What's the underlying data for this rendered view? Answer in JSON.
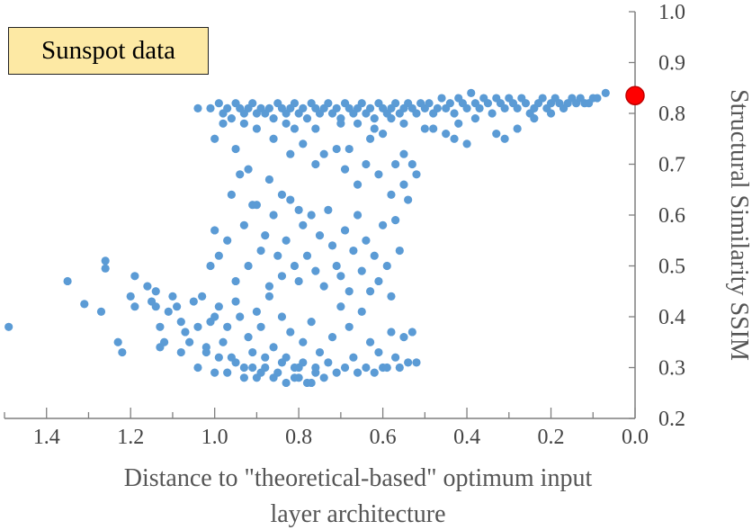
{
  "colors": {
    "points": "#5b9bd5",
    "optimum": "#ff0000",
    "optimum_stroke": "#c00000",
    "annotation_bg": "#fde9a4",
    "axis": "#7f7f7f",
    "text": "#444444"
  },
  "chart_data": {
    "type": "scatter",
    "annotation": "Sunspot data",
    "xlabel_lines": [
      "Distance to \"theoretical-based\" optimum input",
      "layer architecture"
    ],
    "ylabel": "Structural Similarity SSIM",
    "xlim": [
      0,
      1.5
    ],
    "x_reversed": true,
    "ylim": [
      0.2,
      1.0
    ],
    "y_axis_position": "right",
    "grid": false,
    "x_ticks": [
      "1.4",
      "1.2",
      "1.0",
      "0.8",
      "0.6",
      "0.4",
      "0.2",
      "0.0"
    ],
    "x_tick_values": [
      1.4,
      1.2,
      1.0,
      0.8,
      0.6,
      0.4,
      0.2,
      0.0
    ],
    "y_ticks": [
      "1.0",
      "0.9",
      "0.8",
      "0.7",
      "0.6",
      "0.5",
      "0.4",
      "0.3",
      "0.2"
    ],
    "y_tick_values": [
      1.0,
      0.9,
      0.8,
      0.7,
      0.6,
      0.5,
      0.4,
      0.3,
      0.2
    ],
    "optimum_point": {
      "x": 0.0,
      "y": 0.835
    },
    "points": [
      [
        1.49,
        0.38
      ],
      [
        1.35,
        0.47
      ],
      [
        1.31,
        0.425
      ],
      [
        1.27,
        0.41
      ],
      [
        1.26,
        0.51
      ],
      [
        1.26,
        0.495
      ],
      [
        1.23,
        0.35
      ],
      [
        1.22,
        0.33
      ],
      [
        1.2,
        0.44
      ],
      [
        1.19,
        0.42
      ],
      [
        1.19,
        0.48
      ],
      [
        1.16,
        0.46
      ],
      [
        1.15,
        0.43
      ],
      [
        1.14,
        0.45
      ],
      [
        1.14,
        0.42
      ],
      [
        1.13,
        0.38
      ],
      [
        1.13,
        0.34
      ],
      [
        1.12,
        0.35
      ],
      [
        1.11,
        0.41
      ],
      [
        1.1,
        0.44
      ],
      [
        1.09,
        0.42
      ],
      [
        1.08,
        0.39
      ],
      [
        1.08,
        0.33
      ],
      [
        1.07,
        0.37
      ],
      [
        1.06,
        0.35
      ],
      [
        1.05,
        0.43
      ],
      [
        1.04,
        0.3
      ],
      [
        1.04,
        0.38
      ],
      [
        1.03,
        0.44
      ],
      [
        1.02,
        0.34
      ],
      [
        1.01,
        0.39
      ],
      [
        1.0,
        0.29
      ],
      [
        1.0,
        0.4
      ],
      [
        0.99,
        0.42
      ],
      [
        0.98,
        0.35
      ],
      [
        0.97,
        0.38
      ],
      [
        0.96,
        0.32
      ],
      [
        0.95,
        0.43
      ],
      [
        0.94,
        0.4
      ],
      [
        0.93,
        0.3
      ],
      [
        0.92,
        0.36
      ],
      [
        0.91,
        0.33
      ],
      [
        0.9,
        0.41
      ],
      [
        0.9,
        0.28
      ],
      [
        0.89,
        0.38
      ],
      [
        0.88,
        0.3
      ],
      [
        0.87,
        0.44
      ],
      [
        0.86,
        0.34
      ],
      [
        0.85,
        0.29
      ],
      [
        0.84,
        0.4
      ],
      [
        0.83,
        0.32
      ],
      [
        0.82,
        0.37
      ],
      [
        0.81,
        0.28
      ],
      [
        0.8,
        0.3
      ],
      [
        0.79,
        0.35
      ],
      [
        0.78,
        0.27
      ],
      [
        0.77,
        0.39
      ],
      [
        0.76,
        0.29
      ],
      [
        0.75,
        0.33
      ],
      [
        0.74,
        0.28
      ],
      [
        0.73,
        0.31
      ],
      [
        0.72,
        0.36
      ],
      [
        0.71,
        0.29
      ],
      [
        0.7,
        0.42
      ],
      [
        0.69,
        0.3
      ],
      [
        0.68,
        0.38
      ],
      [
        0.67,
        0.32
      ],
      [
        0.66,
        0.29
      ],
      [
        0.65,
        0.41
      ],
      [
        0.64,
        0.3
      ],
      [
        0.63,
        0.35
      ],
      [
        0.62,
        0.29
      ],
      [
        0.61,
        0.33
      ],
      [
        0.6,
        0.3
      ],
      [
        0.59,
        0.3
      ],
      [
        0.58,
        0.37
      ],
      [
        0.57,
        0.32
      ],
      [
        0.56,
        0.3
      ],
      [
        0.55,
        0.36
      ],
      [
        0.54,
        0.31
      ],
      [
        0.53,
        0.37
      ],
      [
        0.52,
        0.31
      ],
      [
        0.97,
        0.29
      ],
      [
        0.93,
        0.28
      ],
      [
        0.89,
        0.29
      ],
      [
        0.86,
        0.28
      ],
      [
        0.83,
        0.27
      ],
      [
        0.8,
        0.28
      ],
      [
        0.77,
        0.27
      ],
      [
        0.84,
        0.31
      ],
      [
        0.81,
        0.3
      ],
      [
        0.79,
        0.31
      ],
      [
        0.76,
        0.3
      ],
      [
        0.91,
        0.3
      ],
      [
        0.95,
        0.31
      ],
      [
        0.99,
        0.32
      ],
      [
        1.02,
        0.33
      ],
      [
        0.88,
        0.32
      ],
      [
        1.01,
        0.5
      ],
      [
        0.99,
        0.52
      ],
      [
        0.97,
        0.55
      ],
      [
        0.95,
        0.47
      ],
      [
        0.93,
        0.58
      ],
      [
        0.92,
        0.5
      ],
      [
        0.9,
        0.62
      ],
      [
        0.89,
        0.53
      ],
      [
        0.88,
        0.56
      ],
      [
        0.87,
        0.46
      ],
      [
        0.86,
        0.6
      ],
      [
        0.85,
        0.52
      ],
      [
        0.84,
        0.48
      ],
      [
        0.83,
        0.55
      ],
      [
        0.82,
        0.63
      ],
      [
        0.81,
        0.5
      ],
      [
        0.8,
        0.47
      ],
      [
        0.79,
        0.58
      ],
      [
        0.78,
        0.52
      ],
      [
        0.77,
        0.6
      ],
      [
        0.76,
        0.49
      ],
      [
        0.75,
        0.56
      ],
      [
        0.74,
        0.46
      ],
      [
        0.73,
        0.61
      ],
      [
        0.72,
        0.54
      ],
      [
        0.71,
        0.5
      ],
      [
        0.7,
        0.48
      ],
      [
        0.69,
        0.57
      ],
      [
        0.68,
        0.45
      ],
      [
        0.67,
        0.53
      ],
      [
        0.66,
        0.6
      ],
      [
        0.65,
        0.49
      ],
      [
        0.64,
        0.55
      ],
      [
        0.63,
        0.45
      ],
      [
        0.62,
        0.52
      ],
      [
        0.61,
        0.47
      ],
      [
        0.6,
        0.58
      ],
      [
        0.59,
        0.5
      ],
      [
        0.58,
        0.44
      ],
      [
        0.57,
        0.59
      ],
      [
        0.56,
        0.53
      ],
      [
        1.0,
        0.57
      ],
      [
        0.96,
        0.64
      ],
      [
        0.94,
        0.68
      ],
      [
        0.91,
        0.62
      ],
      [
        0.87,
        0.67
      ],
      [
        0.84,
        0.64
      ],
      [
        0.8,
        0.61
      ],
      [
        0.76,
        0.7
      ],
      [
        0.74,
        0.72
      ],
      [
        0.69,
        0.69
      ],
      [
        0.66,
        0.66
      ],
      [
        0.64,
        0.7
      ],
      [
        0.61,
        0.68
      ],
      [
        0.58,
        0.64
      ],
      [
        0.55,
        0.66
      ],
      [
        0.54,
        0.63
      ],
      [
        0.57,
        0.7
      ],
      [
        0.6,
        0.76
      ],
      [
        0.63,
        0.75
      ],
      [
        0.71,
        0.73
      ],
      [
        0.79,
        0.74
      ],
      [
        0.86,
        0.75
      ],
      [
        0.95,
        0.73
      ],
      [
        1.0,
        0.75
      ],
      [
        0.92,
        0.69
      ],
      [
        0.82,
        0.72
      ],
      [
        0.68,
        0.73
      ],
      [
        0.52,
        0.68
      ],
      [
        0.55,
        0.72
      ],
      [
        0.53,
        0.7
      ],
      [
        1.04,
        0.81
      ],
      [
        1.01,
        0.81
      ],
      [
        0.99,
        0.82
      ],
      [
        0.98,
        0.8
      ],
      [
        0.97,
        0.81
      ],
      [
        0.96,
        0.79
      ],
      [
        0.95,
        0.82
      ],
      [
        0.94,
        0.81
      ],
      [
        0.93,
        0.8
      ],
      [
        0.92,
        0.81
      ],
      [
        0.91,
        0.82
      ],
      [
        0.9,
        0.8
      ],
      [
        0.89,
        0.81
      ],
      [
        0.88,
        0.8
      ],
      [
        0.87,
        0.81
      ],
      [
        0.86,
        0.79
      ],
      [
        0.85,
        0.82
      ],
      [
        0.84,
        0.81
      ],
      [
        0.83,
        0.8
      ],
      [
        0.82,
        0.81
      ],
      [
        0.81,
        0.82
      ],
      [
        0.8,
        0.8
      ],
      [
        0.79,
        0.81
      ],
      [
        0.78,
        0.79
      ],
      [
        0.77,
        0.82
      ],
      [
        0.76,
        0.81
      ],
      [
        0.75,
        0.8
      ],
      [
        0.74,
        0.81
      ],
      [
        0.73,
        0.82
      ],
      [
        0.72,
        0.8
      ],
      [
        0.71,
        0.81
      ],
      [
        0.7,
        0.79
      ],
      [
        0.69,
        0.82
      ],
      [
        0.68,
        0.81
      ],
      [
        0.67,
        0.8
      ],
      [
        0.66,
        0.81
      ],
      [
        0.65,
        0.82
      ],
      [
        0.64,
        0.8
      ],
      [
        0.63,
        0.81
      ],
      [
        0.62,
        0.79
      ],
      [
        0.61,
        0.82
      ],
      [
        0.6,
        0.81
      ],
      [
        0.59,
        0.8
      ],
      [
        0.58,
        0.81
      ],
      [
        0.57,
        0.82
      ],
      [
        0.56,
        0.8
      ],
      [
        0.55,
        0.81
      ],
      [
        0.54,
        0.82
      ],
      [
        0.53,
        0.81
      ],
      [
        0.52,
        0.8
      ],
      [
        0.51,
        0.82
      ],
      [
        0.5,
        0.81
      ],
      [
        0.49,
        0.82
      ],
      [
        0.48,
        0.8
      ],
      [
        0.47,
        0.81
      ],
      [
        0.46,
        0.83
      ],
      [
        0.45,
        0.81
      ],
      [
        0.44,
        0.82
      ],
      [
        0.43,
        0.8
      ],
      [
        0.42,
        0.83
      ],
      [
        0.41,
        0.82
      ],
      [
        0.4,
        0.81
      ],
      [
        0.39,
        0.84
      ],
      [
        0.38,
        0.82
      ],
      [
        0.37,
        0.81
      ],
      [
        0.36,
        0.83
      ],
      [
        0.35,
        0.82
      ],
      [
        0.34,
        0.8
      ],
      [
        0.33,
        0.83
      ],
      [
        0.32,
        0.82
      ],
      [
        0.31,
        0.81
      ],
      [
        0.3,
        0.83
      ],
      [
        0.29,
        0.82
      ],
      [
        0.28,
        0.81
      ],
      [
        0.27,
        0.83
      ],
      [
        0.26,
        0.82
      ],
      [
        0.25,
        0.8
      ],
      [
        0.24,
        0.81
      ],
      [
        0.23,
        0.82
      ],
      [
        0.22,
        0.83
      ],
      [
        0.21,
        0.81
      ],
      [
        0.2,
        0.82
      ],
      [
        0.19,
        0.83
      ],
      [
        0.18,
        0.82
      ],
      [
        0.17,
        0.81
      ],
      [
        0.16,
        0.82
      ],
      [
        0.15,
        0.83
      ],
      [
        0.14,
        0.82
      ],
      [
        0.13,
        0.83
      ],
      [
        0.12,
        0.82
      ],
      [
        0.11,
        0.82
      ],
      [
        0.1,
        0.83
      ],
      [
        0.09,
        0.83
      ],
      [
        0.07,
        0.84
      ],
      [
        0.98,
        0.78
      ],
      [
        0.9,
        0.77
      ],
      [
        0.83,
        0.78
      ],
      [
        0.76,
        0.77
      ],
      [
        0.7,
        0.78
      ],
      [
        0.62,
        0.77
      ],
      [
        0.55,
        0.78
      ],
      [
        0.5,
        0.77
      ],
      [
        0.45,
        0.76
      ],
      [
        0.42,
        0.78
      ],
      [
        0.38,
        0.79
      ],
      [
        0.33,
        0.76
      ],
      [
        0.28,
        0.77
      ],
      [
        0.24,
        0.79
      ],
      [
        0.2,
        0.8
      ],
      [
        0.17,
        0.81
      ],
      [
        0.43,
        0.75
      ],
      [
        0.4,
        0.74
      ],
      [
        0.31,
        0.75
      ],
      [
        0.48,
        0.77
      ],
      [
        0.58,
        0.79
      ],
      [
        0.66,
        0.78
      ],
      [
        0.81,
        0.77
      ],
      [
        0.93,
        0.78
      ]
    ]
  }
}
